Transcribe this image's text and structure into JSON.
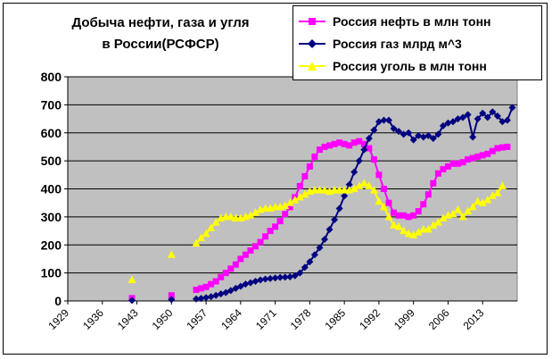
{
  "chart_data": {
    "type": "line",
    "title_lines": [
      "Добыча нефти, газа и угля",
      "в России(РСФСР)"
    ],
    "xlabel": "",
    "ylabel": "",
    "ylim": [
      0,
      800
    ],
    "yticks": [
      0,
      100,
      200,
      300,
      400,
      500,
      600,
      700,
      800
    ],
    "xlim": [
      1929,
      2020
    ],
    "xticks": [
      1929,
      1936,
      1943,
      1950,
      1957,
      1964,
      1971,
      1978,
      1985,
      1992,
      1999,
      2006,
      2013
    ],
    "grid": "horizontal",
    "legend_placement": "top-right",
    "plot_background": "#c0c0c0",
    "series": [
      {
        "name": "Россия нефть в млн тонн",
        "color": "#ff00ff",
        "marker": "square",
        "points": [
          [
            1942,
            10
          ],
          [
            1950,
            20
          ],
          [
            1955,
            40
          ],
          [
            1956,
            45
          ],
          [
            1957,
            50
          ],
          [
            1958,
            60
          ],
          [
            1959,
            70
          ],
          [
            1960,
            85
          ],
          [
            1961,
            100
          ],
          [
            1962,
            115
          ],
          [
            1963,
            130
          ],
          [
            1964,
            150
          ],
          [
            1965,
            165
          ],
          [
            1966,
            180
          ],
          [
            1967,
            195
          ],
          [
            1968,
            210
          ],
          [
            1969,
            230
          ],
          [
            1970,
            250
          ],
          [
            1971,
            265
          ],
          [
            1972,
            285
          ],
          [
            1973,
            310
          ],
          [
            1974,
            335
          ],
          [
            1975,
            370
          ],
          [
            1976,
            410
          ],
          [
            1977,
            445
          ],
          [
            1978,
            480
          ],
          [
            1979,
            515
          ],
          [
            1980,
            540
          ],
          [
            1981,
            550
          ],
          [
            1982,
            555
          ],
          [
            1983,
            560
          ],
          [
            1984,
            565
          ],
          [
            1985,
            560
          ],
          [
            1986,
            555
          ],
          [
            1987,
            565
          ],
          [
            1988,
            570
          ],
          [
            1989,
            560
          ],
          [
            1990,
            545
          ],
          [
            1991,
            505
          ],
          [
            1992,
            450
          ],
          [
            1993,
            400
          ],
          [
            1994,
            350
          ],
          [
            1995,
            315
          ],
          [
            1996,
            305
          ],
          [
            1997,
            305
          ],
          [
            1998,
            300
          ],
          [
            1999,
            305
          ],
          [
            2000,
            320
          ],
          [
            2001,
            345
          ],
          [
            2002,
            380
          ],
          [
            2003,
            420
          ],
          [
            2004,
            455
          ],
          [
            2005,
            470
          ],
          [
            2006,
            480
          ],
          [
            2007,
            490
          ],
          [
            2008,
            490
          ],
          [
            2009,
            495
          ],
          [
            2010,
            505
          ],
          [
            2011,
            510
          ],
          [
            2012,
            515
          ],
          [
            2013,
            520
          ],
          [
            2014,
            525
          ],
          [
            2015,
            535
          ],
          [
            2016,
            545
          ],
          [
            2017,
            548
          ],
          [
            2018,
            550
          ]
        ]
      },
      {
        "name": "Россия газ млрд м^3",
        "color": "#000080",
        "marker": "diamond",
        "points": [
          [
            1942,
            2
          ],
          [
            1950,
            5
          ],
          [
            1955,
            7
          ],
          [
            1956,
            9
          ],
          [
            1957,
            12
          ],
          [
            1958,
            15
          ],
          [
            1959,
            20
          ],
          [
            1960,
            25
          ],
          [
            1961,
            30
          ],
          [
            1962,
            37
          ],
          [
            1963,
            45
          ],
          [
            1964,
            52
          ],
          [
            1965,
            60
          ],
          [
            1966,
            65
          ],
          [
            1967,
            70
          ],
          [
            1968,
            75
          ],
          [
            1969,
            78
          ],
          [
            1970,
            80
          ],
          [
            1971,
            82
          ],
          [
            1972,
            84
          ],
          [
            1973,
            85
          ],
          [
            1974,
            86
          ],
          [
            1975,
            90
          ],
          [
            1976,
            100
          ],
          [
            1977,
            120
          ],
          [
            1978,
            140
          ],
          [
            1979,
            165
          ],
          [
            1980,
            190
          ],
          [
            1981,
            220
          ],
          [
            1982,
            255
          ],
          [
            1983,
            290
          ],
          [
            1984,
            330
          ],
          [
            1985,
            375
          ],
          [
            1986,
            415
          ],
          [
            1987,
            460
          ],
          [
            1988,
            500
          ],
          [
            1989,
            540
          ],
          [
            1990,
            580
          ],
          [
            1991,
            610
          ],
          [
            1992,
            640
          ],
          [
            1993,
            645
          ],
          [
            1994,
            645
          ],
          [
            1995,
            615
          ],
          [
            1996,
            605
          ],
          [
            1997,
            595
          ],
          [
            1998,
            600
          ],
          [
            1999,
            575
          ],
          [
            2000,
            590
          ],
          [
            2001,
            585
          ],
          [
            2002,
            590
          ],
          [
            2003,
            580
          ],
          [
            2004,
            595
          ],
          [
            2005,
            625
          ],
          [
            2006,
            635
          ],
          [
            2007,
            640
          ],
          [
            2008,
            650
          ],
          [
            2009,
            655
          ],
          [
            2010,
            665
          ],
          [
            2011,
            585
          ],
          [
            2012,
            650
          ],
          [
            2013,
            670
          ],
          [
            2014,
            655
          ],
          [
            2015,
            675
          ],
          [
            2016,
            660
          ],
          [
            2017,
            640
          ],
          [
            2018,
            645
          ],
          [
            2019,
            690
          ]
        ]
      },
      {
        "name": "Россия уголь в млн тонн",
        "color": "#ffff00",
        "marker": "triangle",
        "points": [
          [
            1942,
            75
          ],
          [
            1950,
            165
          ],
          [
            1955,
            205
          ],
          [
            1956,
            225
          ],
          [
            1957,
            240
          ],
          [
            1958,
            260
          ],
          [
            1959,
            280
          ],
          [
            1960,
            295
          ],
          [
            1961,
            300
          ],
          [
            1962,
            300
          ],
          [
            1963,
            295
          ],
          [
            1964,
            295
          ],
          [
            1965,
            300
          ],
          [
            1966,
            305
          ],
          [
            1967,
            315
          ],
          [
            1968,
            325
          ],
          [
            1969,
            330
          ],
          [
            1970,
            330
          ],
          [
            1971,
            335
          ],
          [
            1972,
            335
          ],
          [
            1973,
            340
          ],
          [
            1974,
            350
          ],
          [
            1975,
            360
          ],
          [
            1976,
            370
          ],
          [
            1977,
            380
          ],
          [
            1978,
            390
          ],
          [
            1979,
            395
          ],
          [
            1980,
            395
          ],
          [
            1981,
            395
          ],
          [
            1982,
            390
          ],
          [
            1983,
            395
          ],
          [
            1984,
            395
          ],
          [
            1985,
            395
          ],
          [
            1986,
            395
          ],
          [
            1987,
            400
          ],
          [
            1988,
            410
          ],
          [
            1989,
            420
          ],
          [
            1990,
            410
          ],
          [
            1991,
            395
          ],
          [
            1992,
            355
          ],
          [
            1993,
            335
          ],
          [
            1994,
            300
          ],
          [
            1995,
            270
          ],
          [
            1996,
            265
          ],
          [
            1997,
            250
          ],
          [
            1998,
            240
          ],
          [
            1999,
            235
          ],
          [
            2000,
            245
          ],
          [
            2001,
            255
          ],
          [
            2002,
            255
          ],
          [
            2003,
            270
          ],
          [
            2004,
            280
          ],
          [
            2005,
            295
          ],
          [
            2006,
            305
          ],
          [
            2007,
            310
          ],
          [
            2008,
            325
          ],
          [
            2009,
            300
          ],
          [
            2010,
            320
          ],
          [
            2011,
            335
          ],
          [
            2012,
            355
          ],
          [
            2013,
            350
          ],
          [
            2014,
            360
          ],
          [
            2015,
            375
          ],
          [
            2016,
            385
          ],
          [
            2017,
            410
          ]
        ]
      }
    ]
  }
}
